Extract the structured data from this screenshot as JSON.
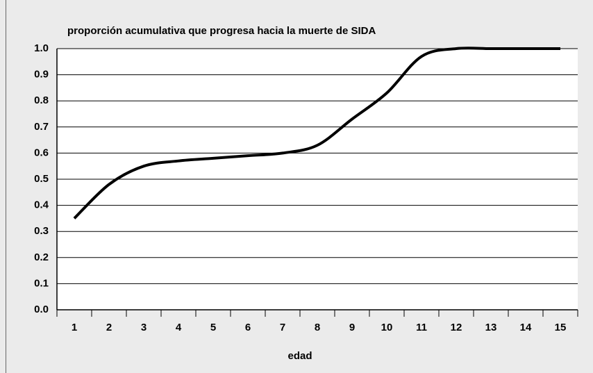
{
  "chart_data": {
    "type": "line",
    "title": "proporción acumulativa que progresa hacia la muerte de SIDA",
    "x_label": "edad",
    "categories": [
      1,
      2,
      3,
      4,
      5,
      6,
      7,
      8,
      9,
      10,
      11,
      12,
      13,
      14,
      15
    ],
    "values": [
      0.35,
      0.48,
      0.55,
      0.57,
      0.58,
      0.59,
      0.6,
      0.63,
      0.73,
      0.83,
      0.97,
      1.0,
      1.0,
      1.0,
      1.0
    ],
    "color": "#000000",
    "ylim": [
      0,
      1
    ],
    "yticks": [
      {
        "value": 0,
        "label": "0.0"
      },
      0.1,
      0.2,
      0.3,
      0.4,
      0.5,
      0.6,
      0.7,
      0.8,
      0.9,
      {
        "value": 1,
        "label": "1.0"
      }
    ],
    "grid": true
  }
}
